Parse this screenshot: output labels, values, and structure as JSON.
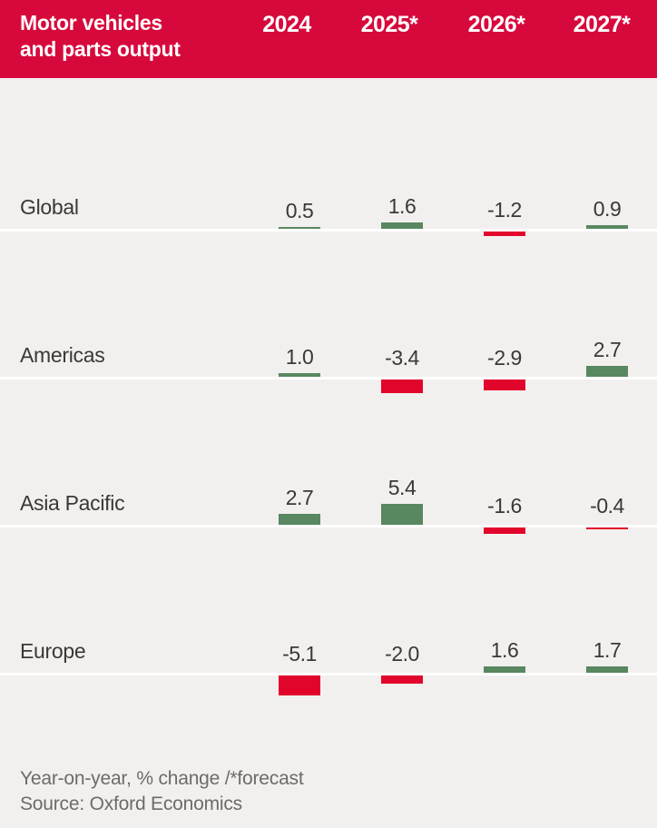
{
  "header": {
    "title_line1": "Motor vehicles",
    "title_line2": "and parts output",
    "columns": [
      "2024",
      "2025*",
      "2026*",
      "2027*"
    ]
  },
  "chart_data": {
    "type": "bar",
    "title": "Motor vehicles and parts output",
    "subtitle": "Year-on-year, % change /*forecast",
    "categories": [
      "2024",
      "2025*",
      "2026*",
      "2027*"
    ],
    "series": [
      {
        "name": "Global",
        "values": [
          0.5,
          1.6,
          -1.2,
          0.9
        ]
      },
      {
        "name": "Americas",
        "values": [
          1.0,
          -3.4,
          -2.9,
          2.7
        ]
      },
      {
        "name": "Asia Pacific",
        "values": [
          2.7,
          5.4,
          -1.6,
          -0.4
        ]
      },
      {
        "name": "Europe",
        "values": [
          -5.1,
          -2.0,
          1.6,
          1.7
        ]
      }
    ],
    "value_format": "one_decimal",
    "layout": "small-multiples, one baseline row per series, labels above bars",
    "grid": false,
    "legend": false,
    "positive_color": "#588760",
    "negative_color": "#e2052b"
  },
  "footer": {
    "note": "Year-on-year, % change /*forecast",
    "source": "Source: Oxford Economics"
  },
  "colors": {
    "header_background": "#d7093c",
    "header_text": "#ffffff",
    "positive_bar": "#588760",
    "negative_bar": "#e2052b",
    "plot_background": "#f2f0ee",
    "baseline": "#ffffff",
    "label_text": "#3b3734",
    "footer_text": "#6e6a66"
  }
}
